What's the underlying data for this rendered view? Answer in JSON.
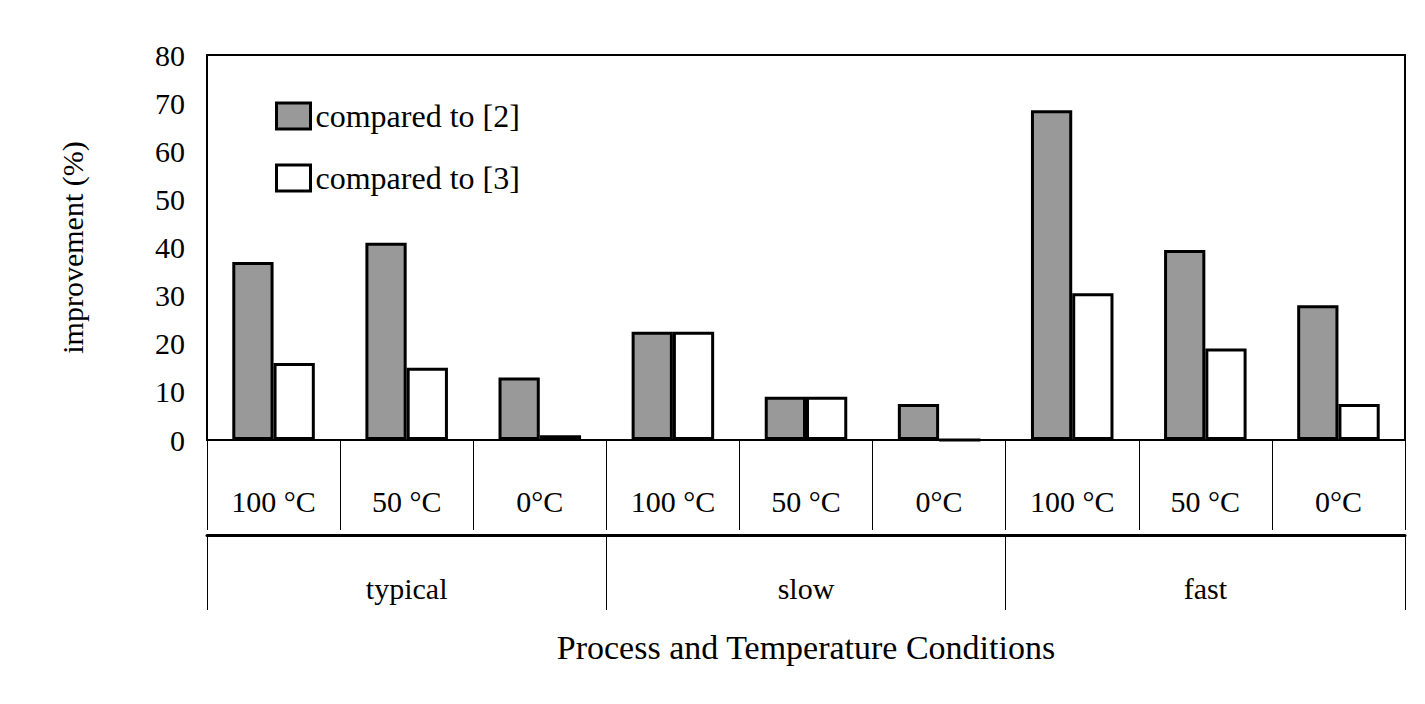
{
  "chart_data": {
    "type": "bar",
    "y_label": "improvement (%)",
    "x_label": "Process and Temperature Conditions",
    "categories": [
      "100 °C",
      "50 °C",
      "0°C",
      "100 °C",
      "50 °C",
      "0°C",
      "100 °C",
      "50 °C",
      "0°C"
    ],
    "groups": [
      "typical",
      "slow",
      "fast"
    ],
    "series": [
      {
        "name": "compared to [2]",
        "color": "#999999",
        "values": [
          37,
          41,
          13,
          22.5,
          9,
          7.5,
          68.5,
          39.5,
          28
        ]
      },
      {
        "name": "compared to [3]",
        "color": "#ffffff",
        "values": [
          16,
          15,
          1,
          22.5,
          9,
          0,
          30.5,
          19,
          7.5
        ]
      }
    ],
    "ylim": [
      0,
      80
    ],
    "yticks": [
      0,
      10,
      20,
      30,
      40,
      50,
      60,
      70,
      80
    ],
    "grid": false,
    "legend": "top-left",
    "data_labels": false
  }
}
